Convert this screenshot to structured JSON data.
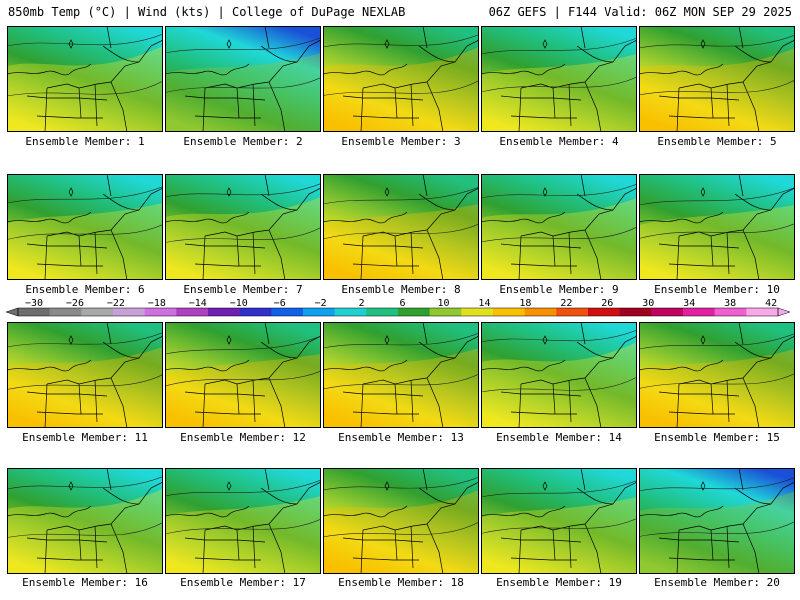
{
  "header": {
    "title_left": "850mb Temp (°C) | Wind (kts) | College of DuPage NEXLAB",
    "title_right": "06Z GEFS | F144 Valid: 06Z MON SEP 29 2025"
  },
  "panels": [
    {
      "caption": "Ensemble Member: 1",
      "warmth": 0.72
    },
    {
      "caption": "Ensemble Member: 2",
      "warmth": 0.85
    },
    {
      "caption": "Ensemble Member: 3",
      "warmth": 0.45
    },
    {
      "caption": "Ensemble Member: 4",
      "warmth": 0.55
    },
    {
      "caption": "Ensemble Member: 5",
      "warmth": 0.42
    },
    {
      "caption": "Ensemble Member: 6",
      "warmth": 0.62
    },
    {
      "caption": "Ensemble Member: 7",
      "warmth": 0.58
    },
    {
      "caption": "Ensemble Member: 8",
      "warmth": 0.4
    },
    {
      "caption": "Ensemble Member: 9",
      "warmth": 0.82
    },
    {
      "caption": "Ensemble Member: 10",
      "warmth": 0.7
    },
    {
      "caption": "Ensemble Member: 11",
      "warmth": 0.5
    },
    {
      "caption": "Ensemble Member: 12",
      "warmth": 0.52
    },
    {
      "caption": "Ensemble Member: 13",
      "warmth": 0.48
    },
    {
      "caption": "Ensemble Member: 14",
      "warmth": 0.74
    },
    {
      "caption": "Ensemble Member: 15",
      "warmth": 0.36
    },
    {
      "caption": "Ensemble Member: 16",
      "warmth": 0.55
    },
    {
      "caption": "Ensemble Member: 17",
      "warmth": 0.8
    },
    {
      "caption": "Ensemble Member: 18",
      "warmth": 0.44
    },
    {
      "caption": "Ensemble Member: 19",
      "warmth": 0.66
    },
    {
      "caption": "Ensemble Member: 20",
      "warmth": 0.86
    }
  ],
  "colorbar": {
    "labels": [
      "−30",
      "−26",
      "−22",
      "−18",
      "−14",
      "−10",
      "−6",
      "−2",
      "2",
      "6",
      "10",
      "14",
      "18",
      "22",
      "26",
      "30",
      "34",
      "38",
      "42"
    ],
    "colors": [
      "#6e6e6e",
      "#8a8a8a",
      "#a8a8a8",
      "#c8a0d8",
      "#d070e0",
      "#b040c0",
      "#7020b0",
      "#3030c8",
      "#1060e8",
      "#10a0f0",
      "#20d0d0",
      "#20c080",
      "#30a030",
      "#90c830",
      "#e0e020",
      "#f8c000",
      "#f89000",
      "#f05010",
      "#d01010",
      "#a00020",
      "#c00060",
      "#e020a0",
      "#f060d0",
      "#f8a8e8"
    ]
  },
  "colors": {
    "cold": "#1a50d8",
    "cyan": "#20d8d8",
    "teal": "#20c080",
    "green": "#30a030",
    "lightgreen": "#90c830",
    "yellow": "#f0e820",
    "gold": "#f8c000",
    "orange": "#f89000"
  }
}
